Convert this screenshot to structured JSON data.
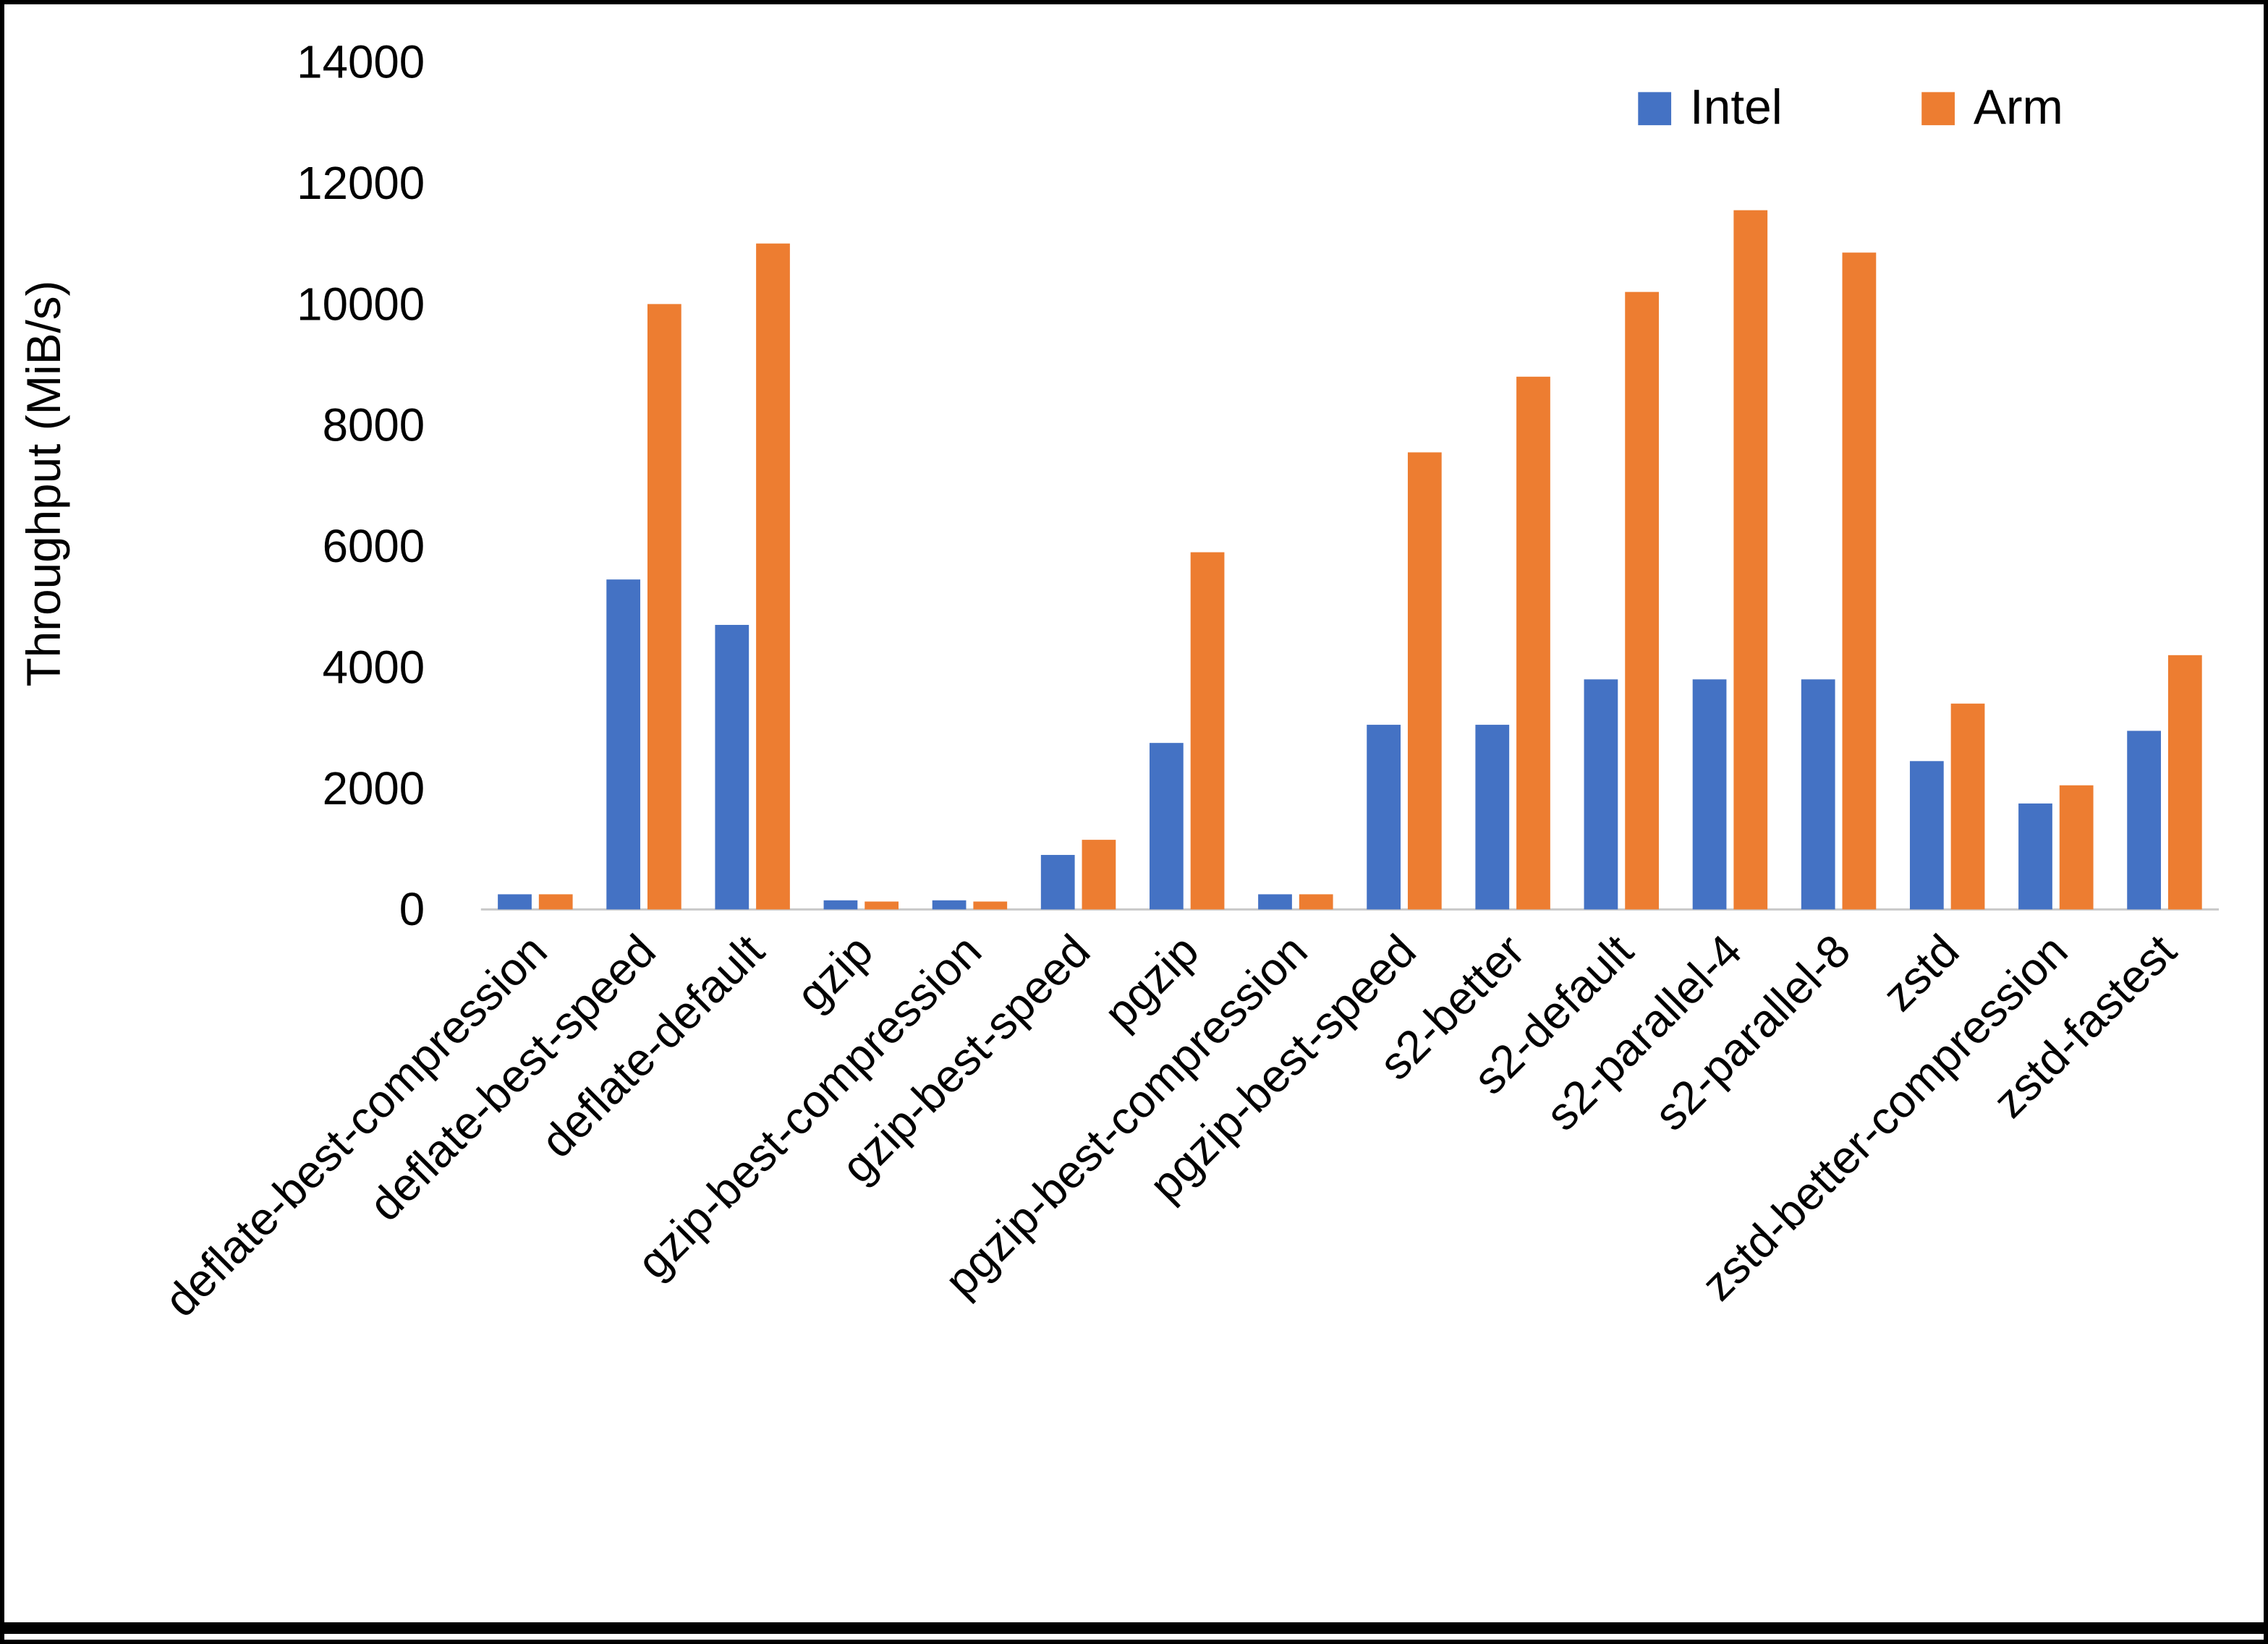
{
  "chart_data": {
    "type": "bar",
    "title": "",
    "xlabel": "",
    "ylabel": "Throughput (MiB/s)",
    "ylim": [
      0,
      14000
    ],
    "ytick_step": 2000,
    "grid": false,
    "legend_position": "top-right",
    "axis_line_color": "#c9c9c9",
    "categories": [
      "deflate-best-compression",
      "deflate-best-speed",
      "deflate-default",
      "gzip",
      "gzip-best-compression",
      "gzip-best-speed",
      "pgzip",
      "pgzip-best-compression",
      "pgzip-best-speed",
      "s2-better",
      "s2-default",
      "s2-parallel-4",
      "s2-parallel-8",
      "zstd",
      "zstd-better-compression",
      "zstd-fastest"
    ],
    "series": [
      {
        "name": "Intel",
        "color": "#4472C4",
        "values": [
          250,
          5450,
          4700,
          150,
          150,
          900,
          2750,
          250,
          3050,
          3050,
          3800,
          3800,
          3800,
          2450,
          1750,
          2950
        ]
      },
      {
        "name": "Arm",
        "color": "#ED7D31",
        "values": [
          250,
          10000,
          11000,
          130,
          130,
          1150,
          5900,
          250,
          7550,
          8800,
          10200,
          11550,
          10850,
          3400,
          2050,
          4200
        ]
      }
    ]
  }
}
